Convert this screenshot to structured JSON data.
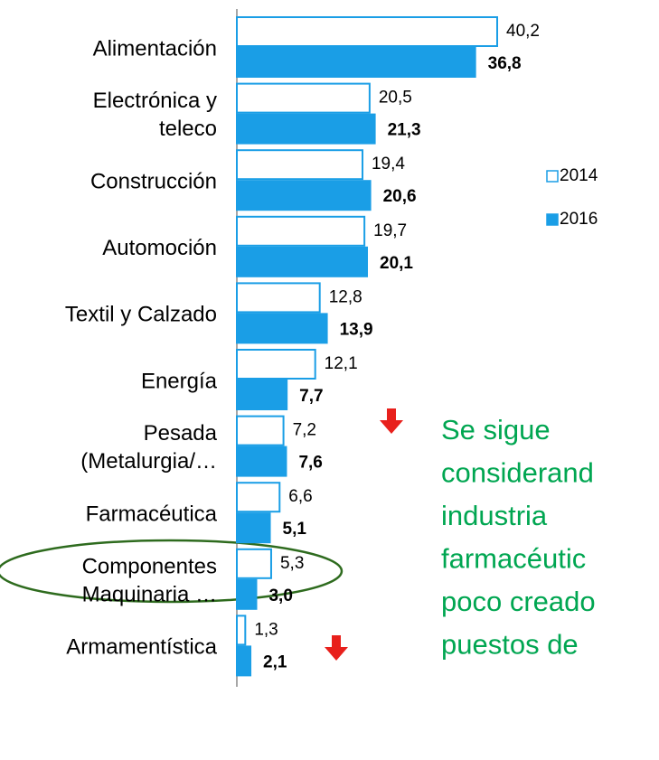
{
  "chart_data": {
    "type": "barh",
    "categories": [
      "Alimentación",
      "Electrónica y\nteleco",
      "Construcción",
      "Automoción",
      "Textil y Calzado",
      "Energía",
      "Pesada\n(Metalurgia/…",
      "Farmacéutica",
      "Componentes\nMaquinaria …",
      "Armamentística"
    ],
    "series": [
      {
        "name": "2014",
        "color": "#1a9ee6",
        "values": [
          40.2,
          20.5,
          19.4,
          19.7,
          12.8,
          12.1,
          7.2,
          6.6,
          5.3,
          1.3
        ],
        "value_labels": [
          "40,2",
          "20,5",
          "19,4",
          "19,7",
          "12,8",
          "12,1",
          "7,2",
          "6,6",
          "5,3",
          "1,3"
        ]
      },
      {
        "name": "2016",
        "color": "#1a9ee6",
        "values": [
          36.8,
          21.3,
          20.6,
          20.1,
          13.9,
          7.7,
          7.6,
          5.1,
          3.0,
          2.1
        ],
        "value_labels": [
          "36,8",
          "21,3",
          "20,6",
          "20,1",
          "13,9",
          "7,7",
          "7,6",
          "5,1",
          "3,0",
          "2,1"
        ]
      }
    ],
    "annotation": [
      "Se sigue",
      "considerand",
      "industria",
      "farmacéutic",
      "poco creado",
      "puestos de"
    ],
    "annotation_color": "#00a651"
  }
}
